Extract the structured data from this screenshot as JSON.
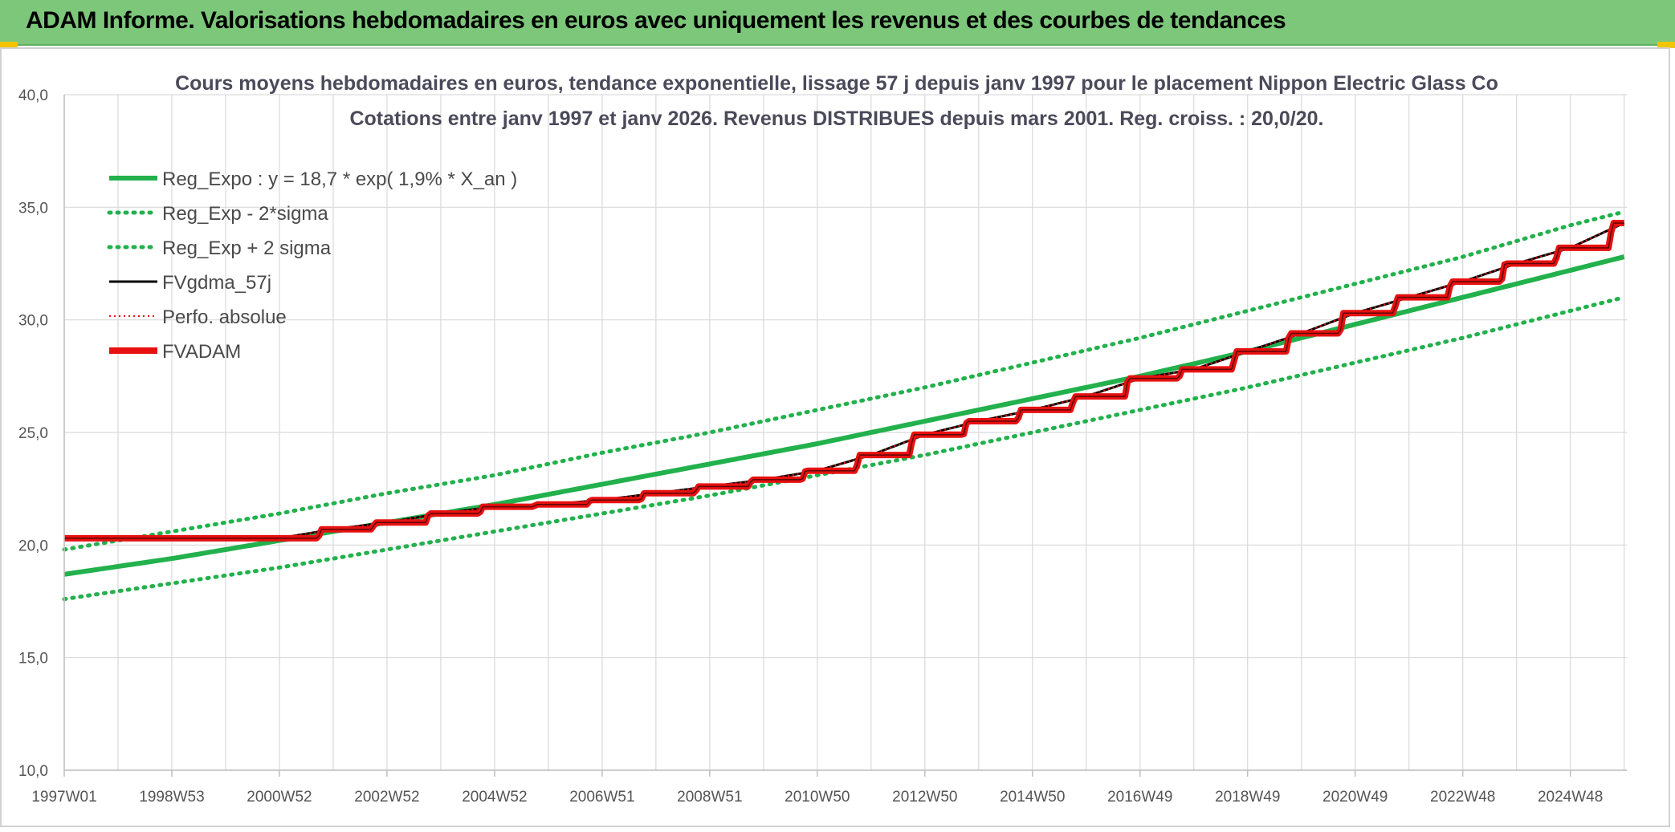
{
  "header": {
    "title": "ADAM Informe. Valorisations hebdomadaires en euros avec uniquement les revenus et des courbes de tendances"
  },
  "chart_data": {
    "type": "line",
    "title": "Cours moyens hebdomadaires en euros, tendance exponentielle, lissage 57 j depuis janv 1997 pour le placement Nippon Electric Glass Co",
    "subtitle": "Cotations entre janv 1997 et janv 2026. Revenus DISTRIBUES depuis mars 2001. Reg. croiss. : 20,0/20.",
    "xlabel": "",
    "ylabel": "",
    "ylim": [
      10,
      40
    ],
    "xlim": [
      1997.0,
      2026.05
    ],
    "y_ticks": [
      "10,0",
      "15,0",
      "20,0",
      "25,0",
      "30,0",
      "35,0",
      "40,0"
    ],
    "x_tick_labels": [
      "1997W01",
      "1998W53",
      "2000W52",
      "2002W52",
      "2004W52",
      "2006W51",
      "2008W51",
      "2010W50",
      "2012W50",
      "2014W50",
      "2016W49",
      "2018W49",
      "2020W49",
      "2022W48",
      "2024W48"
    ],
    "x_tick_years": [
      1997.0,
      1999.0,
      2001.0,
      2003.0,
      2005.0,
      2007.0,
      2009.0,
      2011.0,
      2013.0,
      2015.0,
      2017.0,
      2019.0,
      2021.0,
      2023.0,
      2025.0
    ],
    "grid": true,
    "legend_position": "top-left",
    "series": [
      {
        "name": "Reg_Expo : y = 18,7 * exp( 1,9% *  X_an )",
        "color": "#22b14c",
        "style": "solid",
        "x": [
          1997,
          1999,
          2001,
          2003,
          2005,
          2007,
          2009,
          2011,
          2013,
          2015,
          2017,
          2019,
          2021,
          2023,
          2025,
          2026
        ],
        "values": [
          18.7,
          19.4,
          20.2,
          21.0,
          21.8,
          22.7,
          23.6,
          24.5,
          25.5,
          26.5,
          27.5,
          28.6,
          29.8,
          31.0,
          32.2,
          32.8
        ]
      },
      {
        "name": "Reg_Exp - 2*sigma",
        "color": "#22b14c",
        "style": "dotted",
        "x": [
          1997,
          1999,
          2001,
          2003,
          2005,
          2007,
          2009,
          2011,
          2013,
          2015,
          2017,
          2019,
          2021,
          2023,
          2025,
          2026
        ],
        "values": [
          17.6,
          18.3,
          19.0,
          19.8,
          20.6,
          21.4,
          22.2,
          23.1,
          24.0,
          25.0,
          26.0,
          27.0,
          28.1,
          29.2,
          30.4,
          31.0
        ]
      },
      {
        "name": "Reg_Exp + 2 sigma",
        "color": "#22b14c",
        "style": "dotted",
        "x": [
          1997,
          1999,
          2001,
          2003,
          2005,
          2007,
          2009,
          2011,
          2013,
          2015,
          2017,
          2019,
          2021,
          2023,
          2025,
          2026
        ],
        "values": [
          19.8,
          20.6,
          21.4,
          22.3,
          23.1,
          24.1,
          25.0,
          26.0,
          27.0,
          28.1,
          29.2,
          30.4,
          31.6,
          32.8,
          34.2,
          34.8
        ]
      },
      {
        "name": "FVgdma_57j",
        "color": "#000000",
        "style": "solid",
        "x": [
          1997,
          2001.0,
          2002,
          2003,
          2004,
          2005,
          2006,
          2007,
          2008,
          2009,
          2010,
          2011,
          2012,
          2013,
          2014,
          2015,
          2016,
          2017,
          2018,
          2019,
          2020,
          2021,
          2022,
          2023,
          2024,
          2025,
          2026
        ],
        "values": [
          20.3,
          20.3,
          20.7,
          21.0,
          21.4,
          21.7,
          21.8,
          22.0,
          22.3,
          22.6,
          22.9,
          23.3,
          24.0,
          24.9,
          25.5,
          26.0,
          26.6,
          27.4,
          27.8,
          28.6,
          29.4,
          30.3,
          31.0,
          31.7,
          32.5,
          33.2,
          34.3
        ]
      },
      {
        "name": "Perfo. absolue",
        "color": "#e81010",
        "style": "dotted",
        "x": [
          1997,
          2001.0,
          2002,
          2003,
          2004,
          2005,
          2006,
          2007,
          2008,
          2009,
          2010,
          2011,
          2012,
          2013,
          2014,
          2015,
          2016,
          2017,
          2018,
          2019,
          2020,
          2021,
          2022,
          2023,
          2024,
          2025,
          2026
        ],
        "values": [
          20.3,
          20.3,
          20.7,
          21.0,
          21.4,
          21.7,
          21.8,
          22.0,
          22.3,
          22.6,
          22.9,
          23.3,
          24.0,
          24.9,
          25.5,
          26.0,
          26.6,
          27.4,
          27.8,
          28.6,
          29.4,
          30.3,
          31.0,
          31.7,
          32.5,
          33.2,
          34.3
        ]
      },
      {
        "name": "FVADAM",
        "color": "#e81010",
        "style": "step",
        "x": [
          1997,
          2001.0,
          2002,
          2003,
          2004,
          2005,
          2006,
          2007,
          2008,
          2009,
          2010,
          2011,
          2012,
          2013,
          2014,
          2015,
          2016,
          2017,
          2018,
          2019,
          2020,
          2021,
          2022,
          2023,
          2024,
          2025,
          2026
        ],
        "values": [
          20.3,
          20.3,
          20.7,
          21.0,
          21.4,
          21.7,
          21.8,
          22.0,
          22.3,
          22.6,
          22.9,
          23.3,
          24.0,
          24.9,
          25.5,
          26.0,
          26.6,
          27.4,
          27.8,
          28.6,
          29.4,
          30.3,
          31.0,
          31.7,
          32.5,
          33.2,
          34.3
        ]
      }
    ]
  }
}
